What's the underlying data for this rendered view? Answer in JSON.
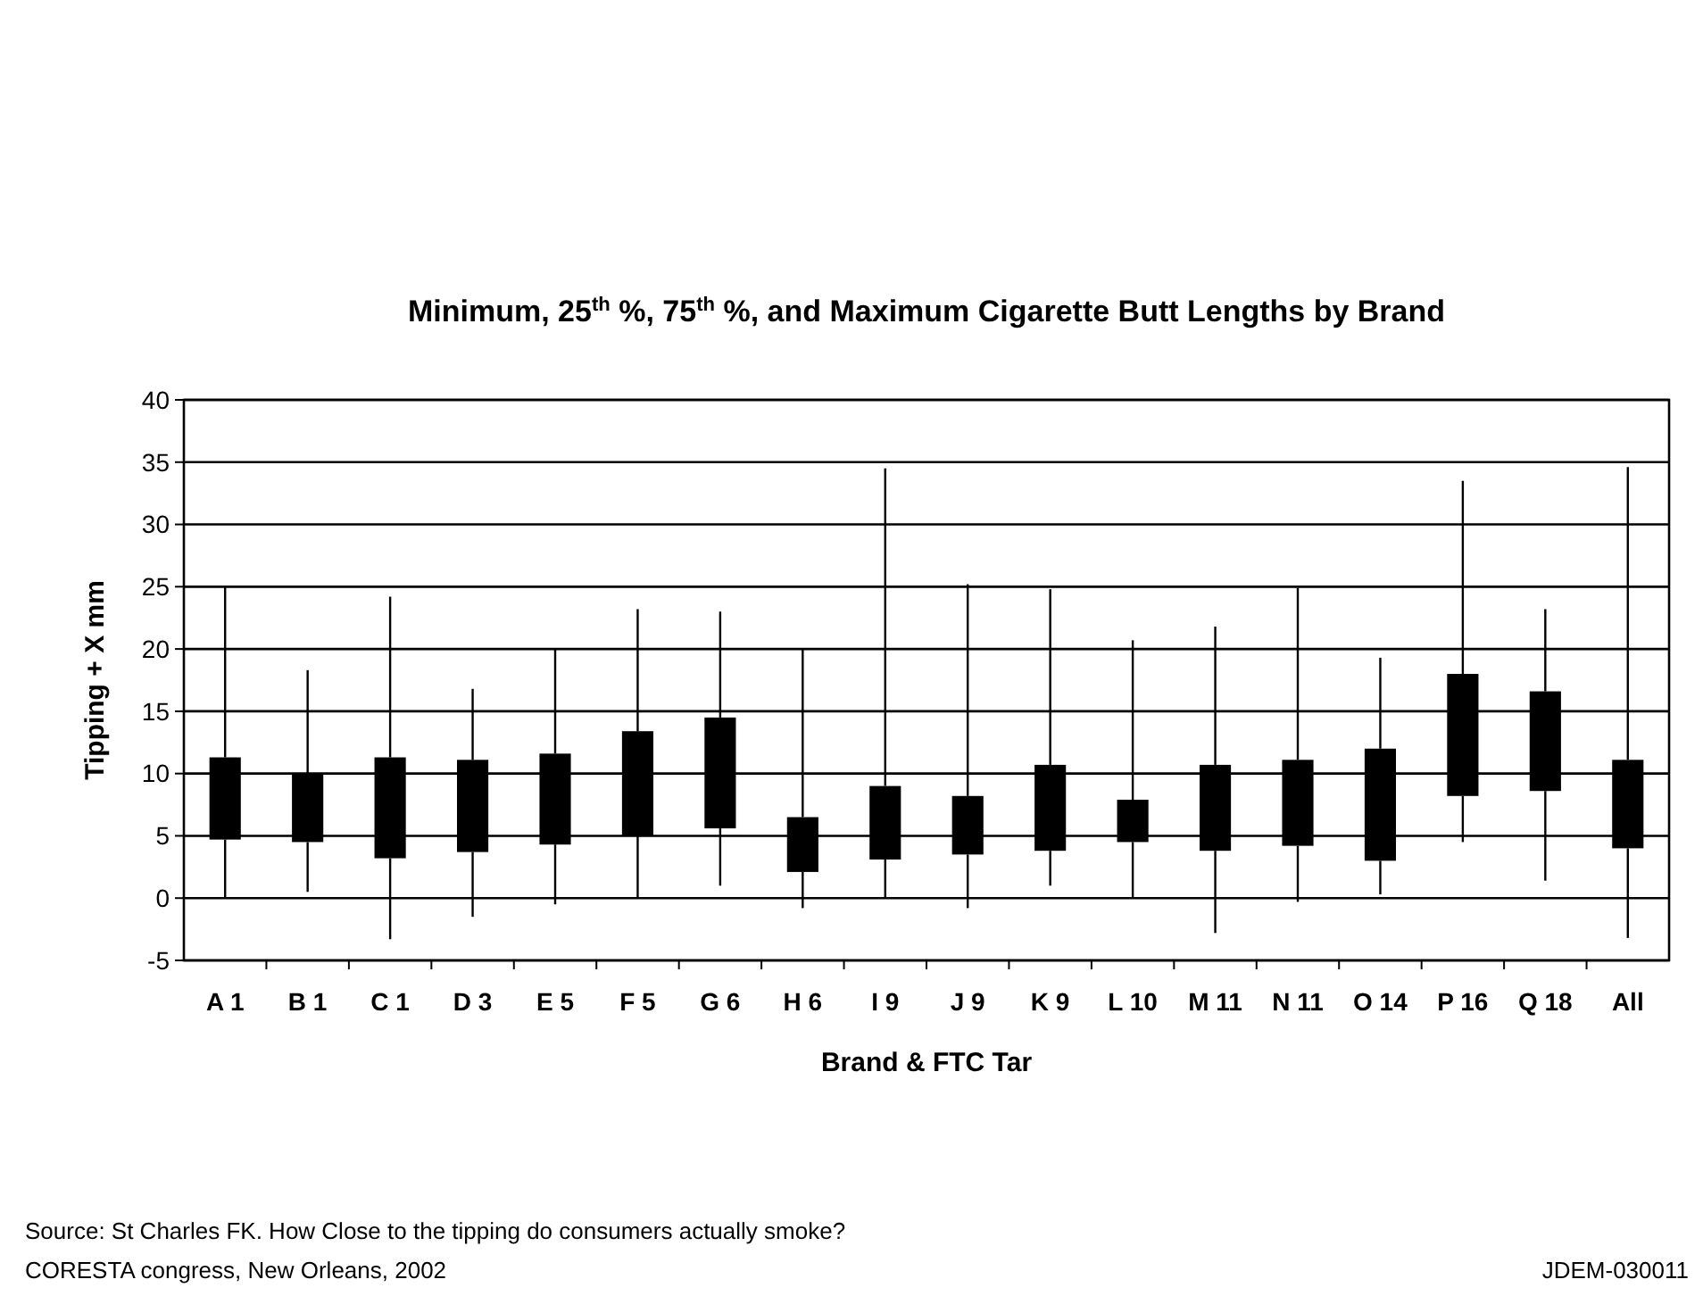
{
  "chart_data": {
    "type": "box",
    "title": "Minimum, 25$^{th}$ %, 75$^{th}$ %, and Maximum Cigarette Butt Lengths by Brand",
    "xlabel": "Brand & FTC Tar",
    "ylabel": "Tipping + X mm",
    "categories": [
      "A 1",
      "B 1",
      "C 1",
      "D 3",
      "E 5",
      "F 5",
      "G 6",
      "H 6",
      "I 9",
      "J 9",
      "K 9",
      "L 10",
      "M 11",
      "N 11",
      "O 14",
      "P 16",
      "Q 18",
      "All"
    ],
    "boxes": [
      {
        "low": 0,
        "q1": 4.7,
        "q3": 11.3,
        "high": 25
      },
      {
        "low": 0.5,
        "q1": 4.5,
        "q3": 10,
        "high": 18.3
      },
      {
        "low": -3.3,
        "q1": 3.2,
        "q3": 11.3,
        "high": 24.2
      },
      {
        "low": -1.5,
        "q1": 3.7,
        "q3": 11.1,
        "high": 16.8
      },
      {
        "low": -0.5,
        "q1": 4.3,
        "q3": 11.6,
        "high": 20
      },
      {
        "low": 0,
        "q1": 5,
        "q3": 13.4,
        "high": 23.2
      },
      {
        "low": 1,
        "q1": 5.6,
        "q3": 14.5,
        "high": 23
      },
      {
        "low": -0.8,
        "q1": 2.1,
        "q3": 6.5,
        "high": 20
      },
      {
        "low": 0,
        "q1": 3.1,
        "q3": 9,
        "high": 34.5
      },
      {
        "low": -0.8,
        "q1": 3.5,
        "q3": 8.2,
        "high": 25.2
      },
      {
        "low": 1,
        "q1": 3.8,
        "q3": 10.7,
        "high": 24.8
      },
      {
        "low": 0,
        "q1": 4.5,
        "q3": 7.9,
        "high": 20.7
      },
      {
        "low": -2.8,
        "q1": 3.8,
        "q3": 10.7,
        "high": 21.8
      },
      {
        "low": -0.3,
        "q1": 4.2,
        "q3": 11.1,
        "high": 24.9
      },
      {
        "low": 0.3,
        "q1": 3,
        "q3": 12,
        "high": 19.3
      },
      {
        "low": 4.5,
        "q1": 8.2,
        "q3": 18,
        "high": 33.5
      },
      {
        "low": 1.4,
        "q1": 8.6,
        "q3": 16.6,
        "high": 23.2
      },
      {
        "low": -3.2,
        "q1": 4,
        "q3": 11.1,
        "high": 34.6
      }
    ],
    "color": "#000000",
    "ylim": [
      -5,
      40
    ],
    "yticks": [
      -5,
      0,
      5,
      10,
      15,
      20,
      25,
      30,
      35,
      40
    ],
    "grid": "y",
    "annotations": [
      "Source:  St Charles FK. How Close to the tipping do consumers actually smoke?",
      "CORESTA congress, New Orleans, 2002",
      "JDEM-030011"
    ]
  }
}
